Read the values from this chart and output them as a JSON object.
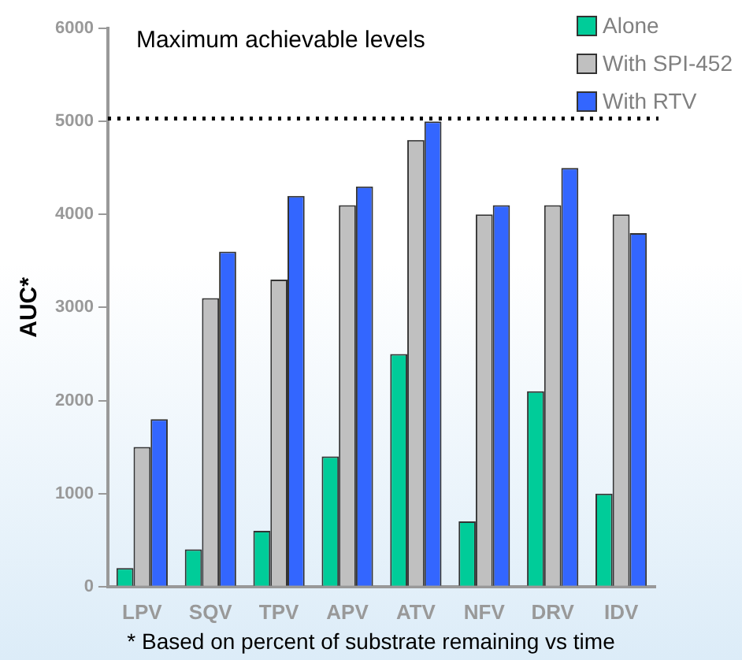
{
  "chart_data": {
    "type": "bar",
    "ylabel": "AUC*",
    "categories": [
      "LPV",
      "SQV",
      "TPV",
      "APV",
      "ATV",
      "NFV",
      "DRV",
      "IDV"
    ],
    "series": [
      {
        "name": "Alone",
        "color": "#00cc99",
        "values": [
          200,
          400,
          600,
          1400,
          2500,
          700,
          2100,
          1000
        ]
      },
      {
        "name": "With SPI-452",
        "color": "#c0c0c0",
        "values": [
          1500,
          3100,
          3300,
          4100,
          4800,
          4000,
          4100,
          4000
        ]
      },
      {
        "name": "With RTV",
        "color": "#3366ff",
        "values": [
          1800,
          3600,
          4200,
          4300,
          5000,
          4100,
          4500,
          3800
        ]
      }
    ],
    "ylim": [
      0,
      6000
    ],
    "yticks": [
      0,
      1000,
      2000,
      3000,
      4000,
      5000,
      6000
    ],
    "grid": false,
    "legend": "top right",
    "ref_lines": [
      {
        "axis": "y",
        "value": 5030,
        "label": "Maximum achievable levels",
        "line_style": "dotted",
        "color": "#000000"
      }
    ],
    "annotations": [
      "* Based on percent of substrate remaining vs time"
    ]
  }
}
